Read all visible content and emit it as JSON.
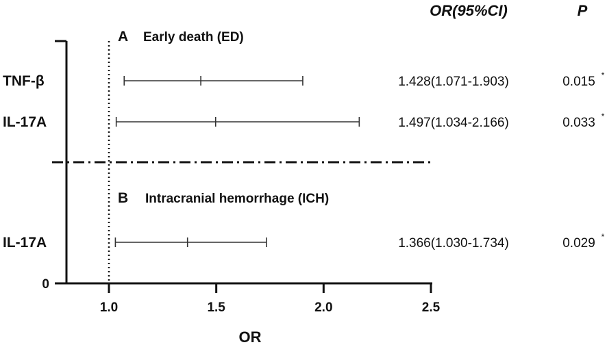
{
  "chart_data": {
    "type": "forest",
    "xlabel": "OR",
    "xlim": [
      0.8,
      2.5
    ],
    "xticks": [
      1.0,
      1.5,
      2.0,
      2.5
    ],
    "y_tick_label": "0",
    "reference_line": 1.0,
    "columns": {
      "or_header": "OR(95%CI)",
      "p_header": "P"
    },
    "sections": [
      {
        "id": "A",
        "letter": "A",
        "title": "Early death (ED)",
        "rows": [
          {
            "label": "TNF-β",
            "or": 1.428,
            "lower": 1.071,
            "upper": 1.903,
            "or_text": "1.428(1.071-1.903)",
            "p_text": "0.015",
            "sig": "*"
          },
          {
            "label": "IL-17A",
            "or": 1.497,
            "lower": 1.034,
            "upper": 2.166,
            "or_text": "1.497(1.034-2.166)",
            "p_text": "0.033",
            "sig": "*"
          }
        ]
      },
      {
        "id": "B",
        "letter": "B",
        "title": "Intracranial hemorrhage (ICH)",
        "rows": [
          {
            "label": "IL-17A",
            "or": 1.366,
            "lower": 1.03,
            "upper": 1.734,
            "or_text": "1.366(1.030-1.734)",
            "p_text": "0.029",
            "sig": "*"
          }
        ]
      }
    ]
  }
}
